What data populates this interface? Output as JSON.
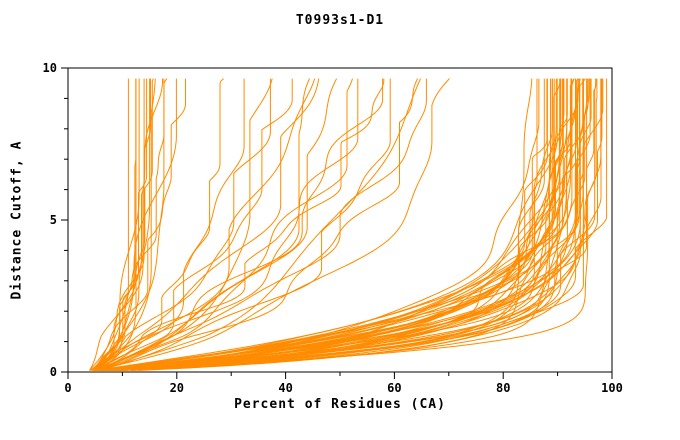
{
  "page": {
    "background": "#ffffff"
  },
  "chart_data": {
    "type": "line",
    "title": "T0993s1-D1",
    "xlabel": "Percent of Residues (CA)",
    "ylabel": "Distance Cutoff, A",
    "xlim": [
      0,
      100
    ],
    "ylim": [
      0,
      10
    ],
    "xticks": [
      0,
      20,
      40,
      60,
      80,
      100
    ],
    "x_minor_ticks": [
      10,
      30,
      50,
      70,
      90
    ],
    "yticks": [
      0,
      5,
      10
    ],
    "y_minor_ticks": [
      1,
      2,
      3,
      4,
      6,
      7,
      8,
      9
    ],
    "color": "#FF8C00",
    "axis_color": "#000000",
    "grid": false,
    "legend": "none",
    "curve_y_start": 0.05,
    "curve_y_end": 9.65,
    "curve_x_origin_percent": 4,
    "series_columns": [
      "max_percent_at_10A",
      "tau_rise_A",
      "power",
      "jitter_percent"
    ],
    "series": [
      [
        10,
        0.7,
        1.0,
        1.5
      ],
      [
        11,
        0.9,
        1.0,
        2
      ],
      [
        12,
        1.2,
        1.0,
        2
      ],
      [
        12,
        0.6,
        1.0,
        1.5
      ],
      [
        13,
        1.5,
        1.0,
        2
      ],
      [
        13,
        0.8,
        1.0,
        1.5
      ],
      [
        14,
        2.0,
        1.0,
        2
      ],
      [
        14,
        1.0,
        1.0,
        2
      ],
      [
        15,
        2.5,
        1.0,
        2
      ],
      [
        15,
        1.2,
        1.0,
        2
      ],
      [
        16,
        3.0,
        1.0,
        2.5
      ],
      [
        17,
        1.5,
        1.0,
        2
      ],
      [
        18,
        3.5,
        1.0,
        2.5
      ],
      [
        20,
        4.0,
        1.0,
        3
      ],
      [
        22,
        4.5,
        1.0,
        3
      ],
      [
        28,
        2.5,
        1.0,
        3
      ],
      [
        32,
        3.0,
        1.0,
        4
      ],
      [
        35,
        2.0,
        1.0,
        4
      ],
      [
        38,
        3.5,
        1.0,
        4
      ],
      [
        42,
        4.0,
        1.0,
        5
      ],
      [
        45,
        2.5,
        1.0,
        5
      ],
      [
        48,
        4.5,
        1.0,
        5
      ],
      [
        50,
        3.0,
        1.0,
        5
      ],
      [
        52,
        5.0,
        1.0,
        5
      ],
      [
        55,
        3.5,
        1.0,
        5
      ],
      [
        58,
        4.2,
        1.0,
        5
      ],
      [
        60,
        2.8,
        1.0,
        5
      ],
      [
        63,
        4.8,
        1.0,
        5
      ],
      [
        66,
        3.2,
        1.0,
        5
      ],
      [
        70,
        4.0,
        1.0,
        5
      ],
      [
        73,
        3.0,
        1.0,
        4
      ],
      [
        75,
        4.5,
        1.0,
        4
      ],
      [
        68,
        5.5,
        1.0,
        5
      ],
      [
        84,
        0.7,
        0.95,
        2
      ],
      [
        85,
        0.9,
        1.0,
        3
      ],
      [
        85,
        1.1,
        1.05,
        4
      ],
      [
        86,
        1.3,
        1.1,
        2.5
      ],
      [
        86,
        1.5,
        1.15,
        3.5
      ],
      [
        87,
        1.7,
        0.9,
        2
      ],
      [
        87,
        0.8,
        1.2,
        3
      ],
      [
        87,
        1.0,
        0.95,
        4
      ],
      [
        88,
        1.2,
        1.0,
        2.5
      ],
      [
        88,
        1.4,
        1.05,
        3.5
      ],
      [
        88,
        1.6,
        1.1,
        2
      ],
      [
        88,
        1.8,
        1.15,
        3
      ],
      [
        89,
        0.7,
        0.9,
        4
      ],
      [
        89,
        0.9,
        1.2,
        2.5
      ],
      [
        89,
        1.1,
        0.95,
        3.5
      ],
      [
        89,
        1.3,
        1.0,
        2
      ],
      [
        90,
        1.5,
        1.05,
        3
      ],
      [
        90,
        1.7,
        1.1,
        4
      ],
      [
        90,
        0.8,
        1.15,
        2.5
      ],
      [
        90,
        1.0,
        0.9,
        3.5
      ],
      [
        90,
        1.2,
        1.2,
        2
      ],
      [
        91,
        1.4,
        0.95,
        3
      ],
      [
        91,
        1.6,
        1.0,
        4
      ],
      [
        91,
        1.8,
        1.05,
        2.5
      ],
      [
        91,
        0.7,
        1.1,
        3.5
      ],
      [
        91,
        0.9,
        1.15,
        2
      ],
      [
        92,
        1.1,
        0.9,
        3
      ],
      [
        92,
        1.3,
        1.2,
        4
      ],
      [
        92,
        1.5,
        0.95,
        2.5
      ],
      [
        92,
        1.7,
        1.0,
        3.5
      ],
      [
        92,
        0.8,
        1.05,
        2
      ],
      [
        92,
        1.0,
        1.1,
        3
      ],
      [
        93,
        1.2,
        1.15,
        4
      ],
      [
        93,
        1.4,
        0.9,
        2.5
      ],
      [
        93,
        1.6,
        1.2,
        3.5
      ],
      [
        93,
        1.8,
        0.95,
        2
      ],
      [
        93,
        0.7,
        1.0,
        3
      ],
      [
        94,
        0.9,
        1.05,
        4
      ],
      [
        94,
        1.1,
        1.1,
        2.5
      ],
      [
        94,
        1.3,
        1.15,
        3.5
      ],
      [
        94,
        1.5,
        0.9,
        2
      ],
      [
        94,
        1.7,
        1.2,
        3
      ],
      [
        95,
        0.8,
        0.95,
        4
      ],
      [
        95,
        1.0,
        1.0,
        2.5
      ],
      [
        95,
        1.2,
        1.05,
        3.5
      ],
      [
        95,
        1.4,
        1.1,
        2
      ],
      [
        96,
        1.6,
        1.15,
        3
      ],
      [
        96,
        1.8,
        0.9,
        4
      ],
      [
        96,
        0.7,
        1.2,
        2.5
      ],
      [
        97,
        0.9,
        0.95,
        3.5
      ],
      [
        97,
        1.1,
        1.0,
        2
      ],
      [
        97,
        1.3,
        1.05,
        3
      ]
    ]
  }
}
